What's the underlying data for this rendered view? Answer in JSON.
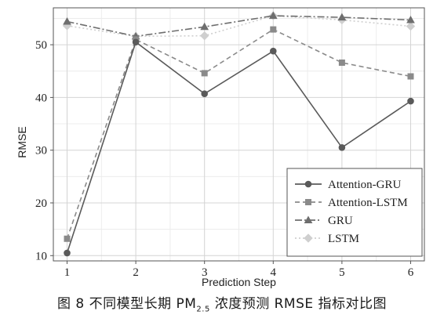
{
  "chart_data": {
    "type": "line",
    "x": [
      1,
      2,
      3,
      4,
      5,
      6
    ],
    "xlabel": "Prediction Step",
    "ylabel": "RMSE",
    "xlim": [
      0.8,
      6.2
    ],
    "ylim": [
      9,
      57
    ],
    "xticks": [
      "1",
      "2",
      "3",
      "4",
      "5",
      "6"
    ],
    "yticks": [
      "10",
      "20",
      "30",
      "40",
      "50"
    ],
    "grid": true,
    "legend_position": "bottom-right",
    "series": [
      {
        "name": "Attention-GRU",
        "values": [
          10.5,
          50.5,
          40.7,
          48.8,
          30.5,
          39.3
        ],
        "color": "#5a5a5a",
        "marker": "circle",
        "linestyle": "solid"
      },
      {
        "name": "Attention-LSTM",
        "values": [
          13.2,
          51.0,
          44.6,
          52.9,
          46.6,
          44.0
        ],
        "color": "#8a8a8a",
        "marker": "square",
        "linestyle": "dashed"
      },
      {
        "name": "GRU",
        "values": [
          54.4,
          51.6,
          53.4,
          55.5,
          55.2,
          54.7
        ],
        "color": "#6e6e6e",
        "marker": "triangle",
        "linestyle": "dashdot"
      },
      {
        "name": "LSTM",
        "values": [
          53.6,
          51.6,
          51.7,
          55.5,
          54.7,
          53.5
        ],
        "color": "#cfcfcf",
        "marker": "diamond",
        "linestyle": "dotted"
      }
    ]
  },
  "caption": {
    "prefix": "图 8   不同模型长期 PM",
    "sub": "2.5",
    "suffix": " 浓度预测 RMSE 指标对比图"
  }
}
